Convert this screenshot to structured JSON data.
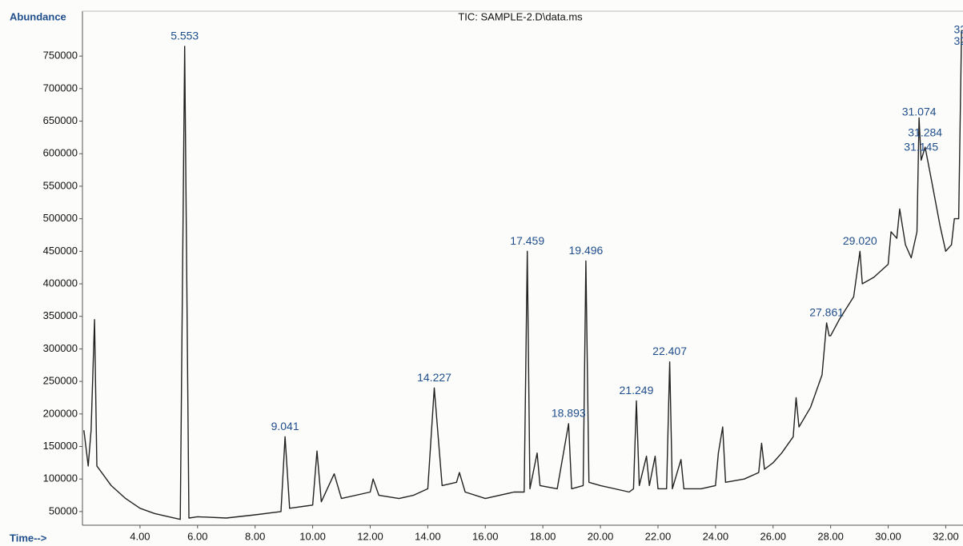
{
  "chart_data": {
    "type": "line",
    "title": "TIC: SAMPLE-2.D\\data.ms",
    "y_label": "Abundance",
    "x_label": "Time-->",
    "x": [
      2.05,
      2.2,
      2.3,
      2.42,
      2.5,
      3.0,
      3.5,
      4.0,
      4.5,
      5.0,
      5.4,
      5.553,
      5.7,
      6.0,
      7.0,
      8.0,
      8.9,
      9.041,
      9.2,
      10.0,
      10.15,
      10.3,
      10.75,
      11.0,
      12.0,
      12.1,
      12.3,
      13.0,
      13.5,
      14.0,
      14.227,
      14.5,
      15.0,
      15.1,
      15.3,
      16.0,
      17.0,
      17.35,
      17.459,
      17.55,
      17.8,
      17.9,
      18.5,
      18.893,
      19.0,
      19.4,
      19.496,
      19.6,
      20.0,
      21.0,
      21.15,
      21.249,
      21.35,
      21.6,
      21.7,
      21.9,
      22.0,
      22.3,
      22.407,
      22.5,
      22.8,
      22.9,
      23.5,
      24.0,
      24.1,
      24.25,
      24.35,
      25.0,
      25.5,
      25.6,
      25.7,
      26.0,
      26.3,
      26.7,
      26.8,
      26.9,
      27.3,
      27.7,
      27.861,
      27.95,
      28.0,
      28.3,
      28.8,
      29.02,
      29.1,
      29.5,
      30.0,
      30.1,
      30.3,
      30.4,
      30.6,
      30.8,
      31.0,
      31.074,
      31.145,
      31.284,
      31.5,
      31.8,
      32.0,
      32.2,
      32.3,
      32.45,
      32.55
    ],
    "series": [
      {
        "name": "TIC",
        "color": "#222222",
        "values": [
          175000,
          120000,
          175000,
          345000,
          120000,
          90000,
          70000,
          55000,
          47000,
          42000,
          38000,
          765000,
          40000,
          42000,
          40000,
          45000,
          50000,
          165000,
          55000,
          60000,
          143000,
          65000,
          108000,
          70000,
          80000,
          100000,
          75000,
          70000,
          75000,
          85000,
          240000,
          90000,
          95000,
          110000,
          80000,
          70000,
          80000,
          80000,
          450000,
          85000,
          140000,
          90000,
          85000,
          185000,
          85000,
          90000,
          435000,
          95000,
          90000,
          80000,
          85000,
          220000,
          90000,
          135000,
          90000,
          135000,
          85000,
          85000,
          280000,
          85000,
          130000,
          85000,
          85000,
          90000,
          140000,
          180000,
          95000,
          100000,
          110000,
          155000,
          115000,
          125000,
          140000,
          165000,
          225000,
          180000,
          210000,
          260000,
          340000,
          320000,
          320000,
          345000,
          380000,
          450000,
          400000,
          410000,
          430000,
          480000,
          470000,
          515000,
          460000,
          440000,
          480000,
          655000,
          590000,
          610000,
          560000,
          490000,
          450000,
          460000,
          500000,
          500000,
          790000
        ]
      }
    ],
    "annotations": [
      {
        "text": "5.553",
        "x": 5.553,
        "y": 780000
      },
      {
        "text": "9.041",
        "x": 9.041,
        "y": 180000
      },
      {
        "text": "14.227",
        "x": 14.227,
        "y": 255000
      },
      {
        "text": "17.459",
        "x": 17.459,
        "y": 465000
      },
      {
        "text": "18.893",
        "x": 18.893,
        "y": 200000
      },
      {
        "text": "19.496",
        "x": 19.496,
        "y": 450000
      },
      {
        "text": "21.249",
        "x": 21.249,
        "y": 235000
      },
      {
        "text": "22.407",
        "x": 22.407,
        "y": 295000
      },
      {
        "text": "27.861",
        "x": 27.861,
        "y": 355000
      },
      {
        "text": "29.020",
        "x": 29.02,
        "y": 465000
      },
      {
        "text": "31.074",
        "x": 31.074,
        "y": 663000
      },
      {
        "text": "31.284",
        "x": 31.284,
        "y": 631000
      },
      {
        "text": "31.145",
        "x": 31.145,
        "y": 609000
      },
      {
        "text": "32.",
        "x": 32.55,
        "y": 790000
      },
      {
        "text": "32.",
        "x": 32.55,
        "y": 772000
      }
    ],
    "xlim": [
      2.0,
      32.6
    ],
    "ylim": [
      29000,
      819000
    ],
    "xticks": [
      {
        "value": 4,
        "label": "4.00"
      },
      {
        "value": 6,
        "label": "6.00"
      },
      {
        "value": 8,
        "label": "8.00"
      },
      {
        "value": 10,
        "label": "10.00"
      },
      {
        "value": 12,
        "label": "12.00"
      },
      {
        "value": 14,
        "label": "14.00"
      },
      {
        "value": 16,
        "label": "16.00"
      },
      {
        "value": 18,
        "label": "18.00"
      },
      {
        "value": 20,
        "label": "20.00"
      },
      {
        "value": 22,
        "label": "22.00"
      },
      {
        "value": 24,
        "label": "24.00"
      },
      {
        "value": 26,
        "label": "26.00"
      },
      {
        "value": 28,
        "label": "28.00"
      },
      {
        "value": 30,
        "label": "30.00"
      },
      {
        "value": 32,
        "label": "32.00"
      }
    ],
    "yticks": [
      50000,
      100000,
      150000,
      200000,
      250000,
      300000,
      350000,
      400000,
      450000,
      500000,
      550000,
      600000,
      650000,
      700000,
      750000
    ]
  }
}
